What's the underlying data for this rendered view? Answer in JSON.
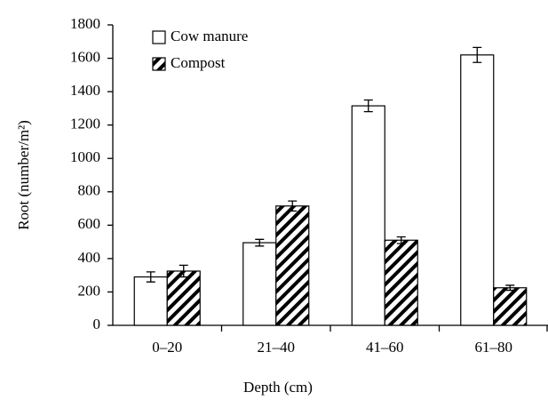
{
  "chart_data": {
    "type": "bar",
    "xlabel": "Depth (cm)",
    "ylabel": "Root (number/m²)",
    "categories": [
      "0–20",
      "21–40",
      "41–60",
      "61–80"
    ],
    "series": [
      {
        "name": "Cow manure",
        "color": "#ffffff",
        "hatch": false,
        "values": [
          290,
          495,
          1315,
          1620
        ],
        "errors": [
          30,
          20,
          35,
          45
        ]
      },
      {
        "name": "Compost",
        "color": "#ffffff",
        "hatch": true,
        "values": [
          325,
          715,
          510,
          225
        ],
        "errors": [
          35,
          30,
          20,
          15
        ]
      }
    ],
    "ylim": [
      0,
      1800
    ],
    "yticks": [
      0,
      200,
      400,
      600,
      800,
      1000,
      1200,
      1400,
      1600,
      1800
    ],
    "grid": false,
    "legend": "top-left"
  }
}
